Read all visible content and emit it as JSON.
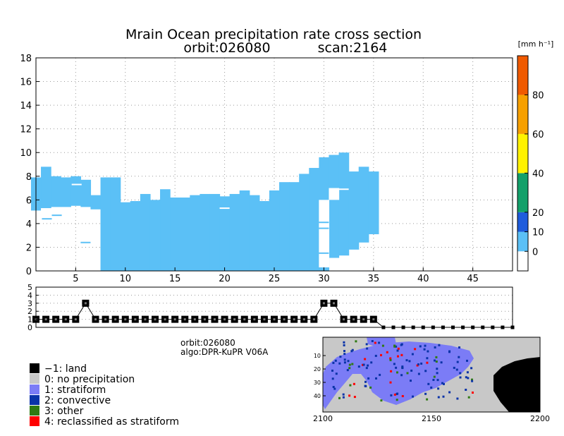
{
  "chart_data": [
    {
      "type": "heatmap",
      "title": "Mrain Ocean precipitation rate cross section",
      "subtitle": [
        "orbit:026080",
        "scan:2164"
      ],
      "xlim": [
        1,
        49
      ],
      "ylim": [
        0,
        18
      ],
      "x_ticks": [
        5,
        10,
        15,
        20,
        25,
        30,
        35,
        40,
        45
      ],
      "y_ticks": [
        0,
        2,
        4,
        6,
        8,
        10,
        12,
        14,
        16,
        18
      ],
      "grid": true,
      "fill_color": "#5bc0f6",
      "rays": [
        {
          "x": 1,
          "top": 7.9,
          "bottom": 5.1
        },
        {
          "x": 2,
          "top": 8.8,
          "bottom": 5.3
        },
        {
          "x": 3,
          "top": 8.0,
          "bottom": 5.4
        },
        {
          "x": 4,
          "top": 7.9,
          "bottom": 5.4
        },
        {
          "x": 5,
          "top": 8.0,
          "bottom": 5.5
        },
        {
          "x": 6,
          "top": 7.7,
          "bottom": 5.4
        },
        {
          "x": 7,
          "top": 6.4,
          "bottom": 5.2
        },
        {
          "x": 8,
          "top": 7.9,
          "bottom": 0
        },
        {
          "x": 9,
          "top": 7.9,
          "bottom": 0
        },
        {
          "x": 10,
          "top": 5.8,
          "bottom": 0
        },
        {
          "x": 11,
          "top": 5.9,
          "bottom": 0
        },
        {
          "x": 12,
          "top": 6.5,
          "bottom": 0
        },
        {
          "x": 13,
          "top": 6.0,
          "bottom": 0
        },
        {
          "x": 14,
          "top": 6.9,
          "bottom": 0
        },
        {
          "x": 15,
          "top": 6.2,
          "bottom": 0
        },
        {
          "x": 16,
          "top": 6.2,
          "bottom": 0
        },
        {
          "x": 17,
          "top": 6.4,
          "bottom": 0
        },
        {
          "x": 18,
          "top": 6.5,
          "bottom": 0
        },
        {
          "x": 19,
          "top": 6.5,
          "bottom": 0
        },
        {
          "x": 20,
          "top": 6.3,
          "bottom": 0
        },
        {
          "x": 21,
          "top": 6.5,
          "bottom": 0
        },
        {
          "x": 22,
          "top": 6.8,
          "bottom": 0
        },
        {
          "x": 23,
          "top": 6.4,
          "bottom": 0
        },
        {
          "x": 24,
          "top": 5.9,
          "bottom": 0
        },
        {
          "x": 25,
          "top": 6.8,
          "bottom": 0
        },
        {
          "x": 26,
          "top": 7.5,
          "bottom": 0
        },
        {
          "x": 27,
          "top": 7.5,
          "bottom": 0
        },
        {
          "x": 28,
          "top": 8.2,
          "bottom": 0
        },
        {
          "x": 29,
          "top": 8.7,
          "bottom": 0
        },
        {
          "x": 30,
          "top": 9.6,
          "bottom": 0
        },
        {
          "x": 31,
          "top": 9.8,
          "bottom": 1.1
        },
        {
          "x": 32,
          "top": 10.0,
          "bottom": 1.3
        },
        {
          "x": 33,
          "top": 8.4,
          "bottom": 1.8
        },
        {
          "x": 34,
          "top": 8.8,
          "bottom": 2.4
        },
        {
          "x": 35,
          "top": 8.4,
          "bottom": 3.1
        }
      ],
      "gaps": [
        {
          "x": 2,
          "from": 4.5,
          "to": 5.3
        },
        {
          "x": 30,
          "from": 0.3,
          "to": 6.0
        },
        {
          "x": 31,
          "from": 6.0,
          "to": 7.0
        }
      ],
      "streaks": [
        {
          "x0": 1.6,
          "x1": 2.6,
          "y": 4.4
        },
        {
          "x0": 2.6,
          "x1": 3.6,
          "y": 4.7
        },
        {
          "x0": 5.5,
          "x1": 6.5,
          "y": 2.4
        },
        {
          "x0": 4.6,
          "x1": 5.6,
          "y": 7.3
        },
        {
          "x0": 19.5,
          "x1": 20.5,
          "y": 5.3
        },
        {
          "x0": 29.5,
          "x1": 30.5,
          "y": 1.5
        },
        {
          "x0": 29.5,
          "x1": 30.5,
          "y": 3.6
        },
        {
          "x0": 29.5,
          "x1": 30.5,
          "y": 4.1
        },
        {
          "x0": 31.5,
          "x1": 32.5,
          "y": 6.9
        }
      ]
    },
    {
      "type": "bar",
      "description_key": "colorbar",
      "unit_label": "[mm h⁻¹]",
      "bounds": [
        -10,
        0,
        10,
        20,
        40,
        60,
        80,
        100
      ],
      "tick_values": [
        0,
        10,
        20,
        40,
        60,
        80
      ],
      "colors": [
        "#ffffff",
        "#5bc0f6",
        "#1f5cdc",
        "#13a06a",
        "#fff200",
        "#f7a000",
        "#f05a00"
      ]
    },
    {
      "type": "line",
      "description_key": "rain-type",
      "xlim": [
        1,
        49
      ],
      "ylim": [
        0,
        5
      ],
      "y_ticks": [
        0,
        1,
        2,
        3,
        4,
        5
      ],
      "values": [
        1,
        1,
        1,
        1,
        1,
        3,
        1,
        1,
        1,
        1,
        1,
        1,
        1,
        1,
        1,
        1,
        1,
        1,
        1,
        1,
        1,
        1,
        1,
        1,
        1,
        1,
        1,
        1,
        1,
        3,
        3,
        1,
        1,
        1,
        1,
        0,
        0,
        0,
        0,
        0,
        0,
        0,
        0,
        0,
        0,
        0,
        0,
        0,
        0
      ]
    },
    {
      "type": "heatmap",
      "description_key": "swath-map",
      "x_ticks": [
        2100,
        2150,
        2200
      ],
      "y_ticks": [
        10,
        20,
        30,
        40
      ],
      "xlim": [
        2100,
        2200
      ]
    }
  ],
  "info": {
    "orbit": "orbit:026080",
    "algo": "algo:DPR-KuPR V06A"
  },
  "legend": [
    {
      "label": "−1: land",
      "color": "#000000"
    },
    {
      "label": "0: no precipitation",
      "color": "#c8c8c8"
    },
    {
      "label": "1: stratiform",
      "color": "#7b7cf6"
    },
    {
      "label": "2: convective",
      "color": "#0a33a8"
    },
    {
      "label": "3: other",
      "color": "#2f7a12"
    },
    {
      "label": "4: reclassified as stratiform",
      "color": "#ff0000"
    }
  ]
}
